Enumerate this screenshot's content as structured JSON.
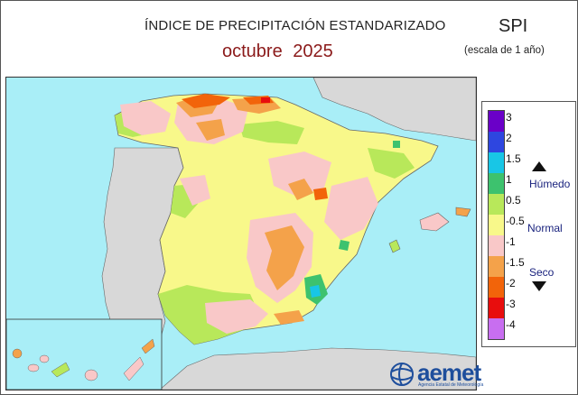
{
  "header": {
    "title": "ÍNDICE DE PRECIPITACIÓN ESTANDARIZADO",
    "subtitle": "octubre  2025",
    "index_name": "SPI",
    "scale_note": "(escala de 1 año)"
  },
  "legend": {
    "ticks": [
      "3",
      "2",
      "1.5",
      "1",
      "0.5",
      "-0.5",
      "-1",
      "-1.5",
      "-2",
      "-3",
      "-4"
    ],
    "colors": [
      "#6a00c8",
      "#2e46e0",
      "#18c6e6",
      "#3dc26e",
      "#b8e85a",
      "#f8f88a",
      "#f9c8c8",
      "#f4a24a",
      "#f2640a",
      "#e80d0d",
      "#c86ef0"
    ],
    "humid_label": "Húmedo",
    "normal_label": "Normal",
    "dry_label": "Seco"
  },
  "map_colors": {
    "sea": "#a9eef7",
    "other_land": "#d8d8d8",
    "normal": "#f8f88a",
    "dry_light": "#f9c8c8",
    "dry_moderate": "#f4a24a",
    "dry_severe": "#f2640a",
    "wet_light": "#b8e85a",
    "wet_moderate": "#3dc26e"
  },
  "logo": {
    "wordmark": "aemet",
    "agency": "Agencia Estatal de Meteorología",
    "icon": "aemet-globe-icon"
  }
}
